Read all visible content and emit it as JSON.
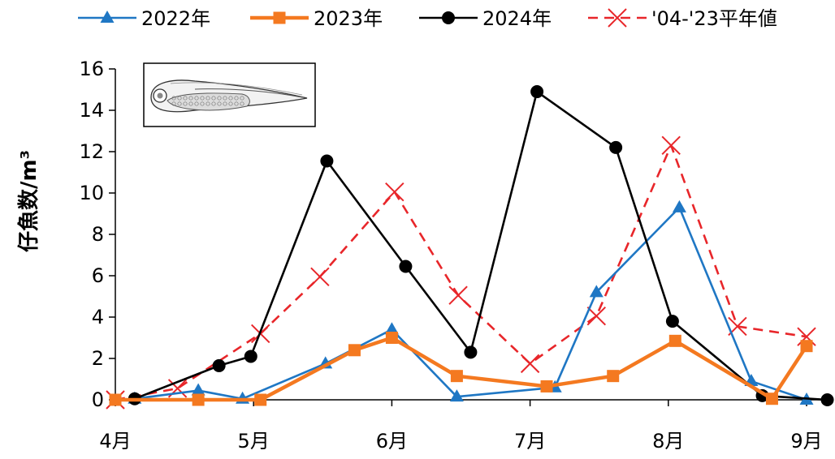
{
  "chart_data": {
    "type": "line",
    "title": "",
    "ylabel": "仔魚数/m³",
    "xlabel": "",
    "ylim": [
      0,
      16
    ],
    "yticks": [
      "0",
      "2",
      "4",
      "6",
      "8",
      "10",
      "12",
      "14",
      "16"
    ],
    "x_range": [
      4.0,
      9.15
    ],
    "x_unit": "month (fractional)",
    "xticks": [
      {
        "value": 4,
        "label": "4月"
      },
      {
        "value": 5,
        "label": "5月"
      },
      {
        "value": 6,
        "label": "6月"
      },
      {
        "value": 7,
        "label": "7月"
      },
      {
        "value": 8,
        "label": "8月"
      },
      {
        "value": 9,
        "label": "9月"
      }
    ],
    "legend_position": "top",
    "grid": false,
    "inset_image": "larval-fish-illustration",
    "series": [
      {
        "name": "2022年",
        "color": "#1f77c4",
        "marker": "triangle",
        "line_style": "solid",
        "points": [
          {
            "x": 4.14,
            "y": 0.05
          },
          {
            "x": 4.6,
            "y": 0.45
          },
          {
            "x": 4.92,
            "y": 0.05
          },
          {
            "x": 5.52,
            "y": 1.75
          },
          {
            "x": 6.0,
            "y": 3.4
          },
          {
            "x": 6.47,
            "y": 0.15
          },
          {
            "x": 7.18,
            "y": 0.6
          },
          {
            "x": 7.48,
            "y": 5.2
          },
          {
            "x": 8.08,
            "y": 9.3
          },
          {
            "x": 8.6,
            "y": 0.9
          },
          {
            "x": 9.0,
            "y": 0.0
          }
        ]
      },
      {
        "name": "2023年",
        "color": "#f47920",
        "marker": "square",
        "line_style": "solid",
        "points": [
          {
            "x": 4.0,
            "y": 0.0
          },
          {
            "x": 4.6,
            "y": 0.0
          },
          {
            "x": 5.05,
            "y": 0.0
          },
          {
            "x": 5.73,
            "y": 2.4
          },
          {
            "x": 6.0,
            "y": 3.0
          },
          {
            "x": 6.47,
            "y": 1.15
          },
          {
            "x": 7.12,
            "y": 0.65
          },
          {
            "x": 7.6,
            "y": 1.15
          },
          {
            "x": 8.05,
            "y": 2.85
          },
          {
            "x": 8.75,
            "y": 0.05
          },
          {
            "x": 9.0,
            "y": 2.6
          }
        ]
      },
      {
        "name": "2024年",
        "color": "#000000",
        "marker": "circle",
        "line_style": "solid",
        "points": [
          {
            "x": 4.14,
            "y": 0.05
          },
          {
            "x": 4.75,
            "y": 1.65
          },
          {
            "x": 4.98,
            "y": 2.1
          },
          {
            "x": 5.53,
            "y": 11.55
          },
          {
            "x": 6.1,
            "y": 6.45
          },
          {
            "x": 6.57,
            "y": 2.3
          },
          {
            "x": 7.05,
            "y": 14.9
          },
          {
            "x": 7.62,
            "y": 12.2
          },
          {
            "x": 8.03,
            "y": 3.8
          },
          {
            "x": 8.68,
            "y": 0.2
          },
          {
            "x": 9.15,
            "y": 0.0
          }
        ]
      },
      {
        "name": "'04-'23平年値",
        "color": "#e8262a",
        "marker": "x",
        "line_style": "dashed",
        "points": [
          {
            "x": 4.0,
            "y": 0.0
          },
          {
            "x": 4.45,
            "y": 0.55
          },
          {
            "x": 5.05,
            "y": 3.2
          },
          {
            "x": 5.48,
            "y": 5.95
          },
          {
            "x": 6.02,
            "y": 10.05
          },
          {
            "x": 6.48,
            "y": 5.05
          },
          {
            "x": 7.0,
            "y": 1.75
          },
          {
            "x": 7.48,
            "y": 4.05
          },
          {
            "x": 8.02,
            "y": 12.3
          },
          {
            "x": 8.5,
            "y": 3.55
          },
          {
            "x": 9.0,
            "y": 3.05
          }
        ]
      }
    ]
  }
}
